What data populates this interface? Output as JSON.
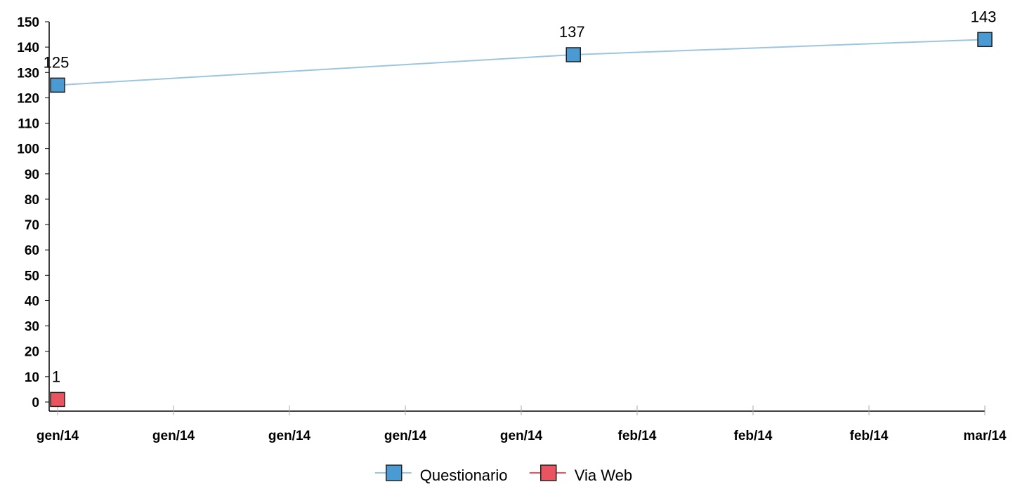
{
  "chart_data": {
    "type": "line",
    "title": "",
    "xlabel": "",
    "ylabel": "",
    "ylim": [
      0,
      150
    ],
    "ytick_step": 10,
    "x_ticks": [
      "gen/14",
      "gen/14",
      "gen/14",
      "gen/14",
      "gen/14",
      "feb/14",
      "feb/14",
      "feb/14",
      "mar/14"
    ],
    "series": [
      {
        "name": "Questionario",
        "color": "#4a9ad4",
        "line_color": "#9cc6e0",
        "points": [
          {
            "x": 0,
            "y": 125,
            "label": "125"
          },
          {
            "x": 4.45,
            "y": 137,
            "label": "137"
          },
          {
            "x": 8,
            "y": 143,
            "label": "143"
          }
        ]
      },
      {
        "name": "Via Web",
        "color": "#e85460",
        "line_color": "#e85460",
        "points": [
          {
            "x": 0,
            "y": 1,
            "label": "1"
          }
        ]
      }
    ],
    "legend": "bottom-center",
    "grid": false
  }
}
